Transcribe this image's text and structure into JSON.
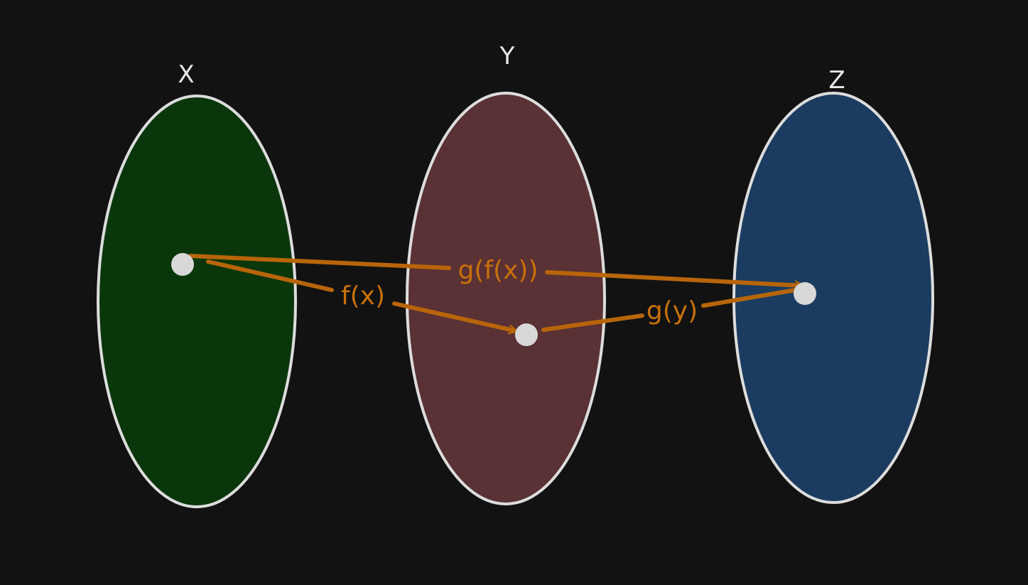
{
  "colors": {
    "background": "#121212",
    "outline": "#dddddd",
    "arrow": "#b8650a",
    "arrow_text": "#c8700a",
    "point": "#d8d8d8",
    "set_x_fill": "#0a360b",
    "set_y_fill": "#5a3134",
    "set_z_fill": "#1b3c60"
  },
  "sets": {
    "x": {
      "label": "X"
    },
    "y": {
      "label": "Y"
    },
    "z": {
      "label": "Z"
    }
  },
  "arrows": {
    "f": {
      "label": "f(x)"
    },
    "g": {
      "label": "g(y)"
    },
    "gf": {
      "label": "g(f(x))"
    }
  }
}
